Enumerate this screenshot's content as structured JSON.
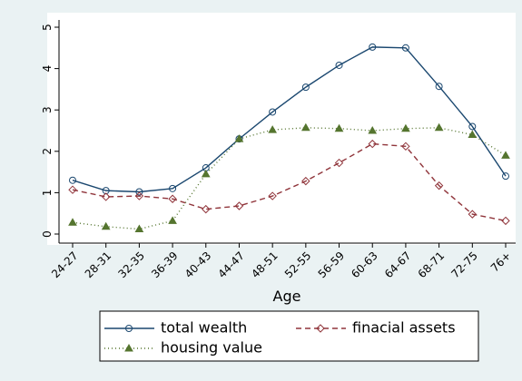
{
  "chart_data": {
    "type": "line",
    "x_label": "Age",
    "categories": [
      "24-27",
      "28-31",
      "32-35",
      "36-39",
      "40-43",
      "44-47",
      "48-51",
      "52-55",
      "56-59",
      "60-63",
      "64-67",
      "68-71",
      "72-75",
      "76+"
    ],
    "series": [
      {
        "name": "total wealth",
        "color": "#1a476f",
        "values": [
          1.3,
          1.05,
          1.02,
          1.1,
          1.6,
          2.3,
          2.95,
          3.55,
          4.08,
          4.52,
          4.5,
          3.57,
          2.6,
          1.4
        ]
      },
      {
        "name": "finacial assets",
        "color": "#90353b",
        "values": [
          1.07,
          0.9,
          0.92,
          0.85,
          0.6,
          0.68,
          0.92,
          1.28,
          1.72,
          2.18,
          2.12,
          1.17,
          0.48,
          0.32
        ]
      },
      {
        "name": "housing value",
        "color": "#55752f",
        "values": [
          0.28,
          0.18,
          0.12,
          0.32,
          1.45,
          2.3,
          2.52,
          2.57,
          2.55,
          2.5,
          2.55,
          2.57,
          2.4,
          1.9
        ]
      }
    ],
    "ylim": [
      0,
      5
    ],
    "yticks": [
      0,
      1,
      2,
      3,
      4,
      5
    ],
    "grid": false
  }
}
